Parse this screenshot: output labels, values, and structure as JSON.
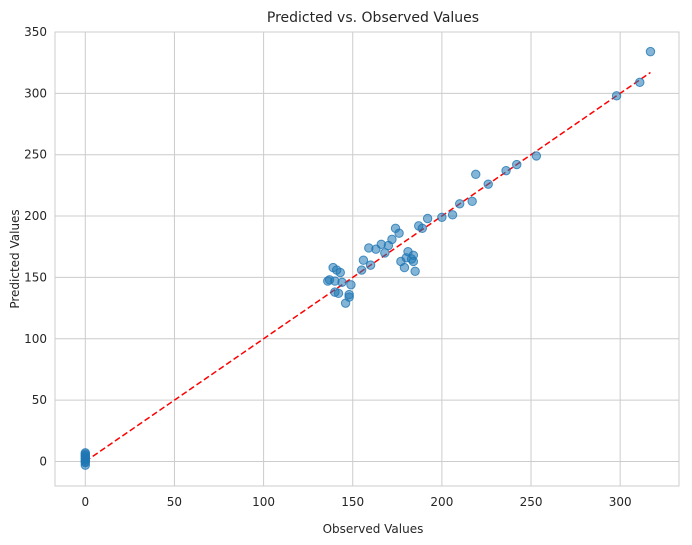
{
  "chart_data": {
    "type": "scatter",
    "title": "Predicted vs. Observed Values",
    "xlabel": "Observed Values",
    "ylabel": "Predicted Values",
    "xlim": [
      -17,
      333
    ],
    "ylim": [
      -20,
      350
    ],
    "xticks": [
      0,
      50,
      100,
      150,
      200,
      250,
      300
    ],
    "yticks": [
      0,
      50,
      100,
      150,
      200,
      250,
      300,
      350
    ],
    "grid": true,
    "colors": {
      "points": "#1f77b4",
      "reference_line": "#ff0000",
      "grid": "#cccccc",
      "frame": "#cccccc"
    },
    "points": [
      {
        "x": 0,
        "y": -3
      },
      {
        "x": 0,
        "y": -1
      },
      {
        "x": 0,
        "y": 0
      },
      {
        "x": 0,
        "y": 1
      },
      {
        "x": 0,
        "y": 2
      },
      {
        "x": 0,
        "y": 3
      },
      {
        "x": 0,
        "y": 4
      },
      {
        "x": 0,
        "y": 5
      },
      {
        "x": 0,
        "y": 6
      },
      {
        "x": 0,
        "y": 7
      },
      {
        "x": 136,
        "y": 147
      },
      {
        "x": 137,
        "y": 148
      },
      {
        "x": 139,
        "y": 158
      },
      {
        "x": 140,
        "y": 147
      },
      {
        "x": 140,
        "y": 138
      },
      {
        "x": 141,
        "y": 156
      },
      {
        "x": 142,
        "y": 137
      },
      {
        "x": 143,
        "y": 154
      },
      {
        "x": 144,
        "y": 146
      },
      {
        "x": 146,
        "y": 129
      },
      {
        "x": 148,
        "y": 134
      },
      {
        "x": 148,
        "y": 136
      },
      {
        "x": 149,
        "y": 144
      },
      {
        "x": 155,
        "y": 156
      },
      {
        "x": 156,
        "y": 164
      },
      {
        "x": 159,
        "y": 174
      },
      {
        "x": 160,
        "y": 160
      },
      {
        "x": 163,
        "y": 173
      },
      {
        "x": 166,
        "y": 177
      },
      {
        "x": 168,
        "y": 170
      },
      {
        "x": 170,
        "y": 176
      },
      {
        "x": 172,
        "y": 181
      },
      {
        "x": 174,
        "y": 190
      },
      {
        "x": 176,
        "y": 186
      },
      {
        "x": 177,
        "y": 163
      },
      {
        "x": 179,
        "y": 158
      },
      {
        "x": 180,
        "y": 166
      },
      {
        "x": 181,
        "y": 171
      },
      {
        "x": 183,
        "y": 165
      },
      {
        "x": 184,
        "y": 168
      },
      {
        "x": 184,
        "y": 163
      },
      {
        "x": 185,
        "y": 155
      },
      {
        "x": 187,
        "y": 192
      },
      {
        "x": 189,
        "y": 190
      },
      {
        "x": 192,
        "y": 198
      },
      {
        "x": 200,
        "y": 199
      },
      {
        "x": 206,
        "y": 201
      },
      {
        "x": 210,
        "y": 210
      },
      {
        "x": 217,
        "y": 212
      },
      {
        "x": 219,
        "y": 234
      },
      {
        "x": 226,
        "y": 226
      },
      {
        "x": 236,
        "y": 237
      },
      {
        "x": 242,
        "y": 242
      },
      {
        "x": 253,
        "y": 249
      },
      {
        "x": 298,
        "y": 298
      },
      {
        "x": 311,
        "y": 309
      },
      {
        "x": 317,
        "y": 334
      }
    ],
    "reference_line": {
      "x": [
        0,
        317
      ],
      "y": [
        0,
        317
      ]
    }
  }
}
